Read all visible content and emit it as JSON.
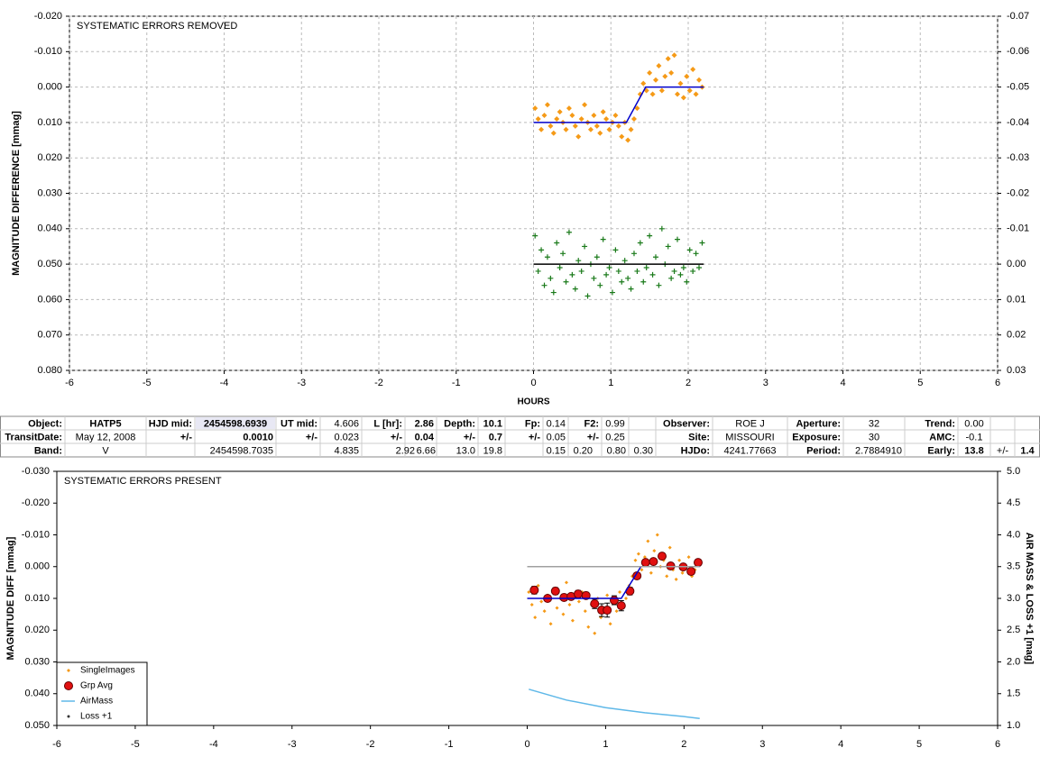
{
  "chart_data": [
    {
      "type": "scatter",
      "title": "SYSTEMATIC ERRORS REMOVED",
      "x_label": "HOURS",
      "y_label": "MAGNITUDE DIFFERENCE [mmag]",
      "xlim": [
        -6,
        6
      ],
      "xticks": [
        -6,
        -5,
        -4,
        -3,
        -2,
        -1,
        0,
        1,
        2,
        3,
        4,
        5,
        6
      ],
      "ylim": [
        -0.02,
        0.08
      ],
      "y_reversed": true,
      "yticks": [
        {
          "value": -0.02,
          "label": "-0.020"
        },
        {
          "value": -0.01,
          "label": "-0.010"
        },
        {
          "value": 0,
          "label": "0.000"
        },
        {
          "value": 0.01,
          "label": "0.010"
        },
        {
          "value": 0.02,
          "label": "0.020"
        },
        {
          "value": 0.03,
          "label": "0.030"
        },
        {
          "value": 0.04,
          "label": "0.040"
        },
        {
          "value": 0.05,
          "label": "0.050"
        },
        {
          "value": 0.06,
          "label": "0.060"
        },
        {
          "value": 0.07,
          "label": "0.070"
        },
        {
          "value": 0.08,
          "label": "0.080"
        }
      ],
      "y2lim": [
        -0.07,
        0.03
      ],
      "y2_reversed": true,
      "y2ticks": [
        -0.07,
        -0.06,
        -0.05,
        -0.04,
        -0.03,
        -0.02,
        -0.01,
        {
          "value": 0,
          "label": "0.00"
        },
        0.01,
        0.02,
        0.03
      ],
      "grid": true,
      "series": [
        {
          "type": "scatter",
          "marker": "diamond",
          "color": "#f59a17",
          "x": [
            0.02,
            0.06,
            0.1,
            0.14,
            0.18,
            0.22,
            0.26,
            0.3,
            0.34,
            0.38,
            0.42,
            0.46,
            0.5,
            0.54,
            0.58,
            0.62,
            0.66,
            0.7,
            0.74,
            0.78,
            0.82,
            0.86,
            0.9,
            0.94,
            0.98,
            1.02,
            1.06,
            1.1,
            1.14,
            1.18,
            1.22,
            1.26,
            1.3,
            1.34,
            1.38,
            1.42,
            1.46,
            1.5,
            1.54,
            1.58,
            1.62,
            1.66,
            1.7,
            1.74,
            1.78,
            1.82,
            1.86,
            1.9,
            1.94,
            1.98,
            2.02,
            2.06,
            2.1,
            2.14,
            2.18
          ],
          "values": [
            0.006,
            0.009,
            0.012,
            0.008,
            0.005,
            0.011,
            0.013,
            0.009,
            0.007,
            0.01,
            0.012,
            0.006,
            0.008,
            0.011,
            0.014,
            0.009,
            0.005,
            0.01,
            0.012,
            0.008,
            0.011,
            0.013,
            0.007,
            0.009,
            0.012,
            0.01,
            0.008,
            0.011,
            0.014,
            0.01,
            0.015,
            0.012,
            0.009,
            0.006,
            0.002,
            -0.001,
            0.001,
            -0.004,
            0.002,
            -0.002,
            -0.006,
            0.001,
            -0.003,
            -0.008,
            -0.004,
            -0.009,
            0.002,
            -0.001,
            0.003,
            -0.003,
            0.001,
            -0.005,
            0.002,
            -0.002,
            0.0
          ]
        },
        {
          "type": "line",
          "color": "#0000cc",
          "x": [
            0,
            1.2,
            1.45,
            2.2
          ],
          "values": [
            0.01,
            0.01,
            0,
            0
          ]
        },
        {
          "type": "scatter",
          "marker": "plus",
          "color": "#1a7a1a",
          "axis": "y2",
          "x": [
            0.02,
            0.06,
            0.1,
            0.14,
            0.18,
            0.22,
            0.26,
            0.3,
            0.34,
            0.38,
            0.42,
            0.46,
            0.5,
            0.54,
            0.58,
            0.62,
            0.66,
            0.7,
            0.74,
            0.78,
            0.82,
            0.86,
            0.9,
            0.94,
            0.98,
            1.02,
            1.06,
            1.1,
            1.14,
            1.18,
            1.22,
            1.26,
            1.3,
            1.34,
            1.38,
            1.42,
            1.46,
            1.5,
            1.54,
            1.58,
            1.62,
            1.66,
            1.7,
            1.74,
            1.78,
            1.82,
            1.86,
            1.9,
            1.94,
            1.98,
            2.02,
            2.06,
            2.1,
            2.14,
            2.18
          ],
          "values": [
            -0.008,
            0.002,
            -0.004,
            0.006,
            -0.002,
            0.004,
            0.008,
            -0.006,
            0.001,
            -0.003,
            0.005,
            -0.009,
            0.003,
            0.007,
            -0.001,
            0.002,
            -0.005,
            0.009,
            0.0,
            0.004,
            -0.002,
            0.006,
            -0.007,
            0.003,
            0.001,
            0.008,
            -0.004,
            0.002,
            0.005,
            -0.001,
            0.004,
            0.007,
            -0.003,
            0.002,
            -0.006,
            0.005,
            0.001,
            -0.008,
            0.003,
            -0.002,
            0.006,
            -0.01,
            0.0,
            -0.005,
            0.004,
            0.002,
            -0.007,
            0.003,
            0.001,
            0.005,
            -0.004,
            0.002,
            -0.003,
            0.001,
            -0.006
          ]
        },
        {
          "type": "line",
          "color": "#000000",
          "axis": "y2",
          "x": [
            0,
            2.2
          ],
          "values": [
            0,
            0
          ]
        }
      ]
    },
    {
      "type": "scatter",
      "title": "SYSTEMATIC ERRORS PRESENT",
      "y_label": "MAGNITUDE DIFF [mmag]",
      "y2_label": "AIR MASS & LOSS +1 [mag]",
      "xlim": [
        -6,
        6
      ],
      "xticks": [
        -6,
        -5,
        -4,
        -3,
        -2,
        -1,
        0,
        1,
        2,
        3,
        4,
        5,
        6
      ],
      "ylim": [
        -0.03,
        0.05
      ],
      "y_reversed": true,
      "yticks": [
        {
          "value": -0.03,
          "label": "-0.030"
        },
        {
          "value": -0.02,
          "label": "-0.020"
        },
        {
          "value": -0.01,
          "label": "-0.010"
        },
        {
          "value": 0,
          "label": "0.000"
        },
        {
          "value": 0.01,
          "label": "0.010"
        },
        {
          "value": 0.02,
          "label": "0.020"
        },
        {
          "value": 0.03,
          "label": "0.030"
        },
        {
          "value": 0.04,
          "label": "0.040"
        },
        {
          "value": 0.05,
          "label": "0.050"
        }
      ],
      "y2lim": [
        1,
        5
      ],
      "y2_reversed": false,
      "y2ticks": [
        {
          "value": 1,
          "label": "1.0"
        },
        1.5,
        {
          "value": 2,
          "label": "2.0"
        },
        2.5,
        {
          "value": 3,
          "label": "3.0"
        },
        3.5,
        {
          "value": 4,
          "label": "4.0"
        },
        4.5,
        {
          "value": 5,
          "label": "5.0"
        }
      ],
      "grid": false,
      "legend": "bottom-left",
      "series": [
        {
          "name": "SingleImages",
          "type": "scatter",
          "marker": "dot-diamond",
          "color": "#f59a17",
          "x": [
            0.02,
            0.06,
            0.1,
            0.14,
            0.18,
            0.22,
            0.26,
            0.3,
            0.34,
            0.38,
            0.42,
            0.46,
            0.5,
            0.54,
            0.58,
            0.62,
            0.66,
            0.7,
            0.74,
            0.78,
            0.82,
            0.86,
            0.9,
            0.94,
            0.98,
            1.02,
            1.06,
            1.1,
            1.14,
            1.18,
            1.22,
            1.26,
            1.3,
            1.34,
            1.38,
            1.42,
            1.46,
            1.5,
            1.54,
            1.58,
            1.62,
            1.66,
            1.7,
            1.74,
            1.78,
            1.82,
            1.86,
            1.9,
            1.94,
            1.98,
            2.02,
            2.06,
            2.1,
            2.14,
            2.18
          ],
          "values": [
            0.008,
            0.012,
            0.016,
            0.006,
            0.011,
            0.014,
            0.009,
            0.018,
            0.007,
            0.013,
            0.01,
            0.015,
            0.005,
            0.012,
            0.017,
            0.009,
            0.011,
            0.008,
            0.014,
            0.019,
            0.012,
            0.021,
            0.01,
            0.016,
            0.013,
            0.009,
            0.018,
            0.011,
            0.014,
            0.008,
            0.013,
            0.01,
            0.006,
            0.003,
            -0.002,
            -0.004,
            0.001,
            -0.003,
            -0.008,
            0.002,
            -0.005,
            -0.01,
            0.0,
            -0.002,
            0.003,
            -0.006,
            0.001,
            0.004,
            -0.002,
            0.002,
            0.0,
            -0.003,
            0.003,
            0.001,
            -0.002
          ]
        },
        {
          "name": "Grp Avg",
          "type": "scatter",
          "marker": "circle",
          "color": "#e01010",
          "x": [
            0.09,
            0.26,
            0.36,
            0.47,
            0.56,
            0.65,
            0.75,
            0.86,
            0.95,
            1.02,
            1.11,
            1.2,
            1.31,
            1.4,
            1.51,
            1.61,
            1.72,
            1.83,
            1.99,
            2.09,
            2.18
          ],
          "values": [
            0.0074,
            0.01,
            0.0077,
            0.0097,
            0.0094,
            0.0086,
            0.0091,
            0.0117,
            0.0137,
            0.0137,
            0.0106,
            0.0123,
            0.0077,
            0.0029,
            -0.0013,
            -0.0016,
            -0.0033,
            -0.0002,
            0.0001,
            0.0015,
            -0.0013
          ],
          "errors": [
            0.0012,
            0.001,
            0.0011,
            0.001,
            0.0009,
            0.0011,
            0.001,
            0.0015,
            0.002,
            0.0022,
            0.0014,
            0.0016,
            0.0012,
            0.001,
            0.0009,
            0.0008,
            0.001,
            0.0009,
            0.0008,
            0.0009,
            0.001
          ]
        },
        {
          "type": "line",
          "color": "#0000cc",
          "x": [
            0,
            1.2,
            1.45,
            2.2
          ],
          "values": [
            0.01,
            0.01,
            0,
            0
          ]
        },
        {
          "name": "AirMass",
          "type": "line",
          "color": "#5fb8e8",
          "axis": "y2",
          "x": [
            0.02,
            0.5,
            1.0,
            1.5,
            2.0,
            2.2
          ],
          "values": [
            1.57,
            1.4,
            1.28,
            1.2,
            1.14,
            1.11
          ]
        },
        {
          "name": "Loss +1",
          "type": "line",
          "marker": "dot",
          "color": "#a0a0a0",
          "axis": "y2",
          "x": [
            0,
            2.2
          ],
          "values": [
            3.5,
            3.5
          ]
        }
      ]
    }
  ],
  "table": {
    "rows": [
      [
        "Object:",
        "HATP5",
        "HJD mid:",
        "2454598.6939",
        "UT mid:",
        "4.606",
        "L [hr]:",
        "2.86",
        "Depth:",
        "10.1",
        "Fp:",
        "0.14",
        "F2:",
        "0.99",
        "Observer:",
        "ROE J",
        "Aperture:",
        "32",
        "Trend:",
        "0.00"
      ],
      [
        "TransitDate:",
        "May 12, 2008",
        "+/-",
        "0.0010",
        "+/-",
        "0.023",
        "+/-",
        "0.04",
        "+/-",
        "0.7",
        "+/-",
        "0.05",
        "+/-",
        "0.25",
        "Site:",
        "MISSOURI",
        "Exposure:",
        "30",
        "AMC:",
        "-0.1"
      ],
      [
        "Band:",
        "V",
        "2454598.7035",
        "4.835",
        "2.92",
        "6.66",
        "13.0",
        "19.8",
        "0.15",
        "0.20",
        "0.80",
        "0.30",
        "HJDo:",
        "4241.77663",
        "Period:",
        "2.7884910",
        "Early:",
        "13.8",
        "+/-",
        "1.4"
      ]
    ]
  }
}
